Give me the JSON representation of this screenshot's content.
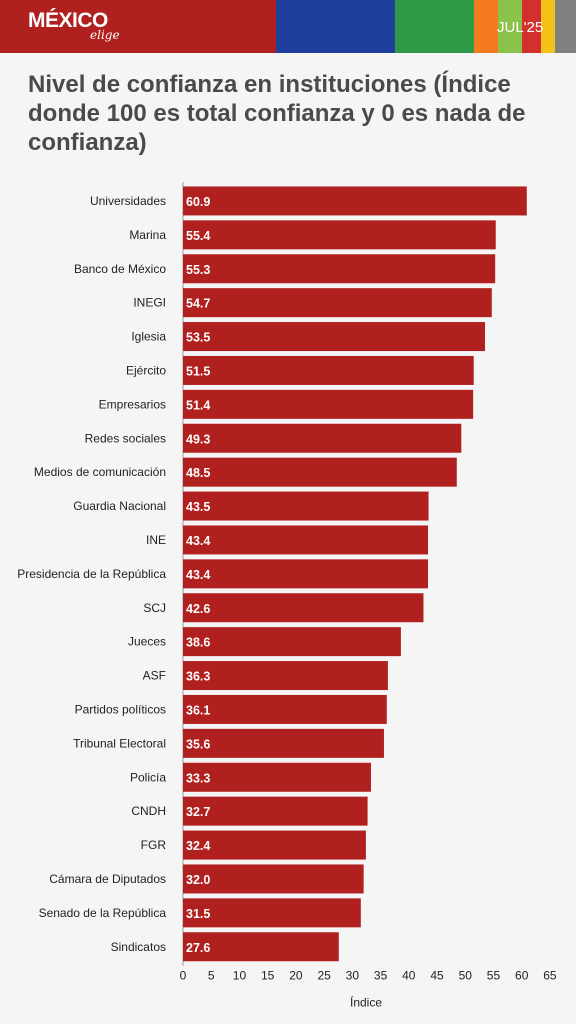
{
  "header": {
    "logo_main": "MÉXICO",
    "logo_sub": "elige",
    "date": "JUL'25",
    "stripe_colors": [
      "#b0201e",
      "#1f3f9e",
      "#2e9a47",
      "#f47a1f",
      "#8bc34a",
      "#d32f2f",
      "#f2c21b",
      "#808080"
    ]
  },
  "title": "Nivel de confianza en instituciones (Índice donde 100 es total confianza y 0 es nada de confianza)",
  "chart_data": {
    "type": "bar",
    "orientation": "horizontal",
    "categories": [
      "Universidades",
      "Marina",
      "Banco de México",
      "INEGI",
      "Iglesia",
      "Ejército",
      "Empresarios",
      "Redes sociales",
      "Medios de comunicación",
      "Guardia Nacional",
      "INE",
      "Presidencia de la República",
      "SCJ",
      "Jueces",
      "ASF",
      "Partidos políticos",
      "Tribunal Electoral",
      "Policía",
      "CNDH",
      "FGR",
      "Cámara de Diputados",
      "Senado de la República",
      "Sindicatos"
    ],
    "values": [
      60.9,
      55.4,
      55.3,
      54.7,
      53.5,
      51.5,
      51.4,
      49.3,
      48.5,
      43.5,
      43.4,
      43.4,
      42.6,
      38.6,
      36.3,
      36.1,
      35.6,
      33.3,
      32.7,
      32.4,
      32.0,
      31.5,
      27.6
    ],
    "labels": [
      "60.9",
      "55.4",
      "55.3",
      "54.7",
      "53.5",
      "51.5",
      "51.4",
      "49.3",
      "48.5",
      "43.5",
      "43.4",
      "43.4",
      "42.6",
      "38.6",
      "36.3",
      "36.1",
      "35.6",
      "33.3",
      "32.7",
      "32.4",
      "32.0",
      "31.5",
      "27.6"
    ],
    "xlim": [
      0,
      65
    ],
    "xticks": [
      0,
      5,
      10,
      15,
      20,
      25,
      30,
      35,
      40,
      45,
      50,
      55,
      60,
      65
    ],
    "xlabel": "Índice",
    "ylabel": "",
    "bar_color": "#b0201e",
    "grid": false,
    "legend": "none"
  }
}
